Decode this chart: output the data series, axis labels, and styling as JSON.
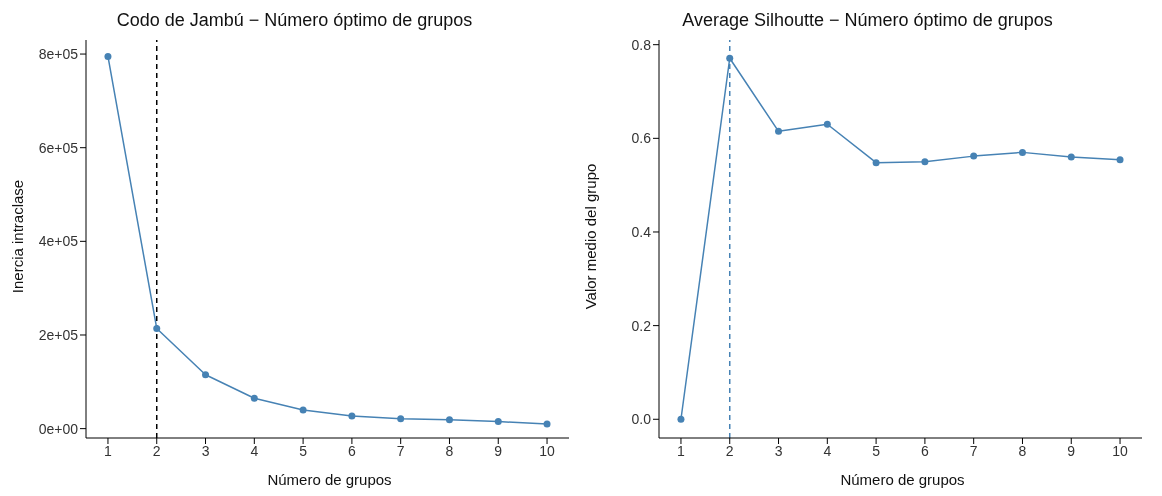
{
  "chart_data": [
    {
      "type": "line",
      "title": "Codo de Jambú − Número óptimo de grupos",
      "xlabel": "Número de grupos",
      "ylabel": "Inercia intraclase",
      "x": [
        1,
        2,
        3,
        4,
        5,
        6,
        7,
        8,
        9,
        10
      ],
      "series": [
        {
          "color": "#4682b4",
          "values": [
            795000,
            214000,
            115000,
            65000,
            40000,
            27000,
            21000,
            19000,
            15000,
            10000
          ]
        }
      ],
      "xlim": [
        0.55,
        10.45
      ],
      "xticks": [
        1,
        2,
        3,
        4,
        5,
        6,
        7,
        8,
        9,
        10
      ],
      "ylim": [
        -20000,
        830000
      ],
      "yticks": [
        {
          "value": 0,
          "label": "0e+00"
        },
        {
          "value": 200000,
          "label": "2e+05"
        },
        {
          "value": 400000,
          "label": "4e+05"
        },
        {
          "value": 600000,
          "label": "6e+05"
        },
        {
          "value": 800000,
          "label": "8e+05"
        }
      ],
      "ref_lines": [
        {
          "axis": "x",
          "value": 2,
          "color": "#000000",
          "line_style": "dashed"
        }
      ],
      "grid": false,
      "marker": "circle",
      "line_style": "solid",
      "legend": false
    },
    {
      "type": "line",
      "title": "Average Silhoutte − Número óptimo de grupos",
      "xlabel": "Número de grupos",
      "ylabel": "Valor medio del grupo",
      "x": [
        1,
        2,
        3,
        4,
        5,
        6,
        7,
        8,
        9,
        10
      ],
      "series": [
        {
          "color": "#4682b4",
          "values": [
            0,
            0.771,
            0.615,
            0.63,
            0.548,
            0.55,
            0.562,
            0.57,
            0.56,
            0.554
          ]
        }
      ],
      "xlim": [
        0.55,
        10.45
      ],
      "xticks": [
        1,
        2,
        3,
        4,
        5,
        6,
        7,
        8,
        9,
        10
      ],
      "ylim": [
        -0.04,
        0.81
      ],
      "yticks": [
        {
          "value": 0,
          "label": "0.0"
        },
        {
          "value": 0.2,
          "label": "0.2"
        },
        {
          "value": 0.4,
          "label": "0.4"
        },
        {
          "value": 0.6,
          "label": "0.6"
        },
        {
          "value": 0.8,
          "label": "0.8"
        }
      ],
      "ref_lines": [
        {
          "axis": "x",
          "value": 2,
          "color": "#4682b4",
          "line_style": "dashed"
        }
      ],
      "grid": false,
      "marker": "circle",
      "line_style": "solid",
      "legend": false
    }
  ]
}
